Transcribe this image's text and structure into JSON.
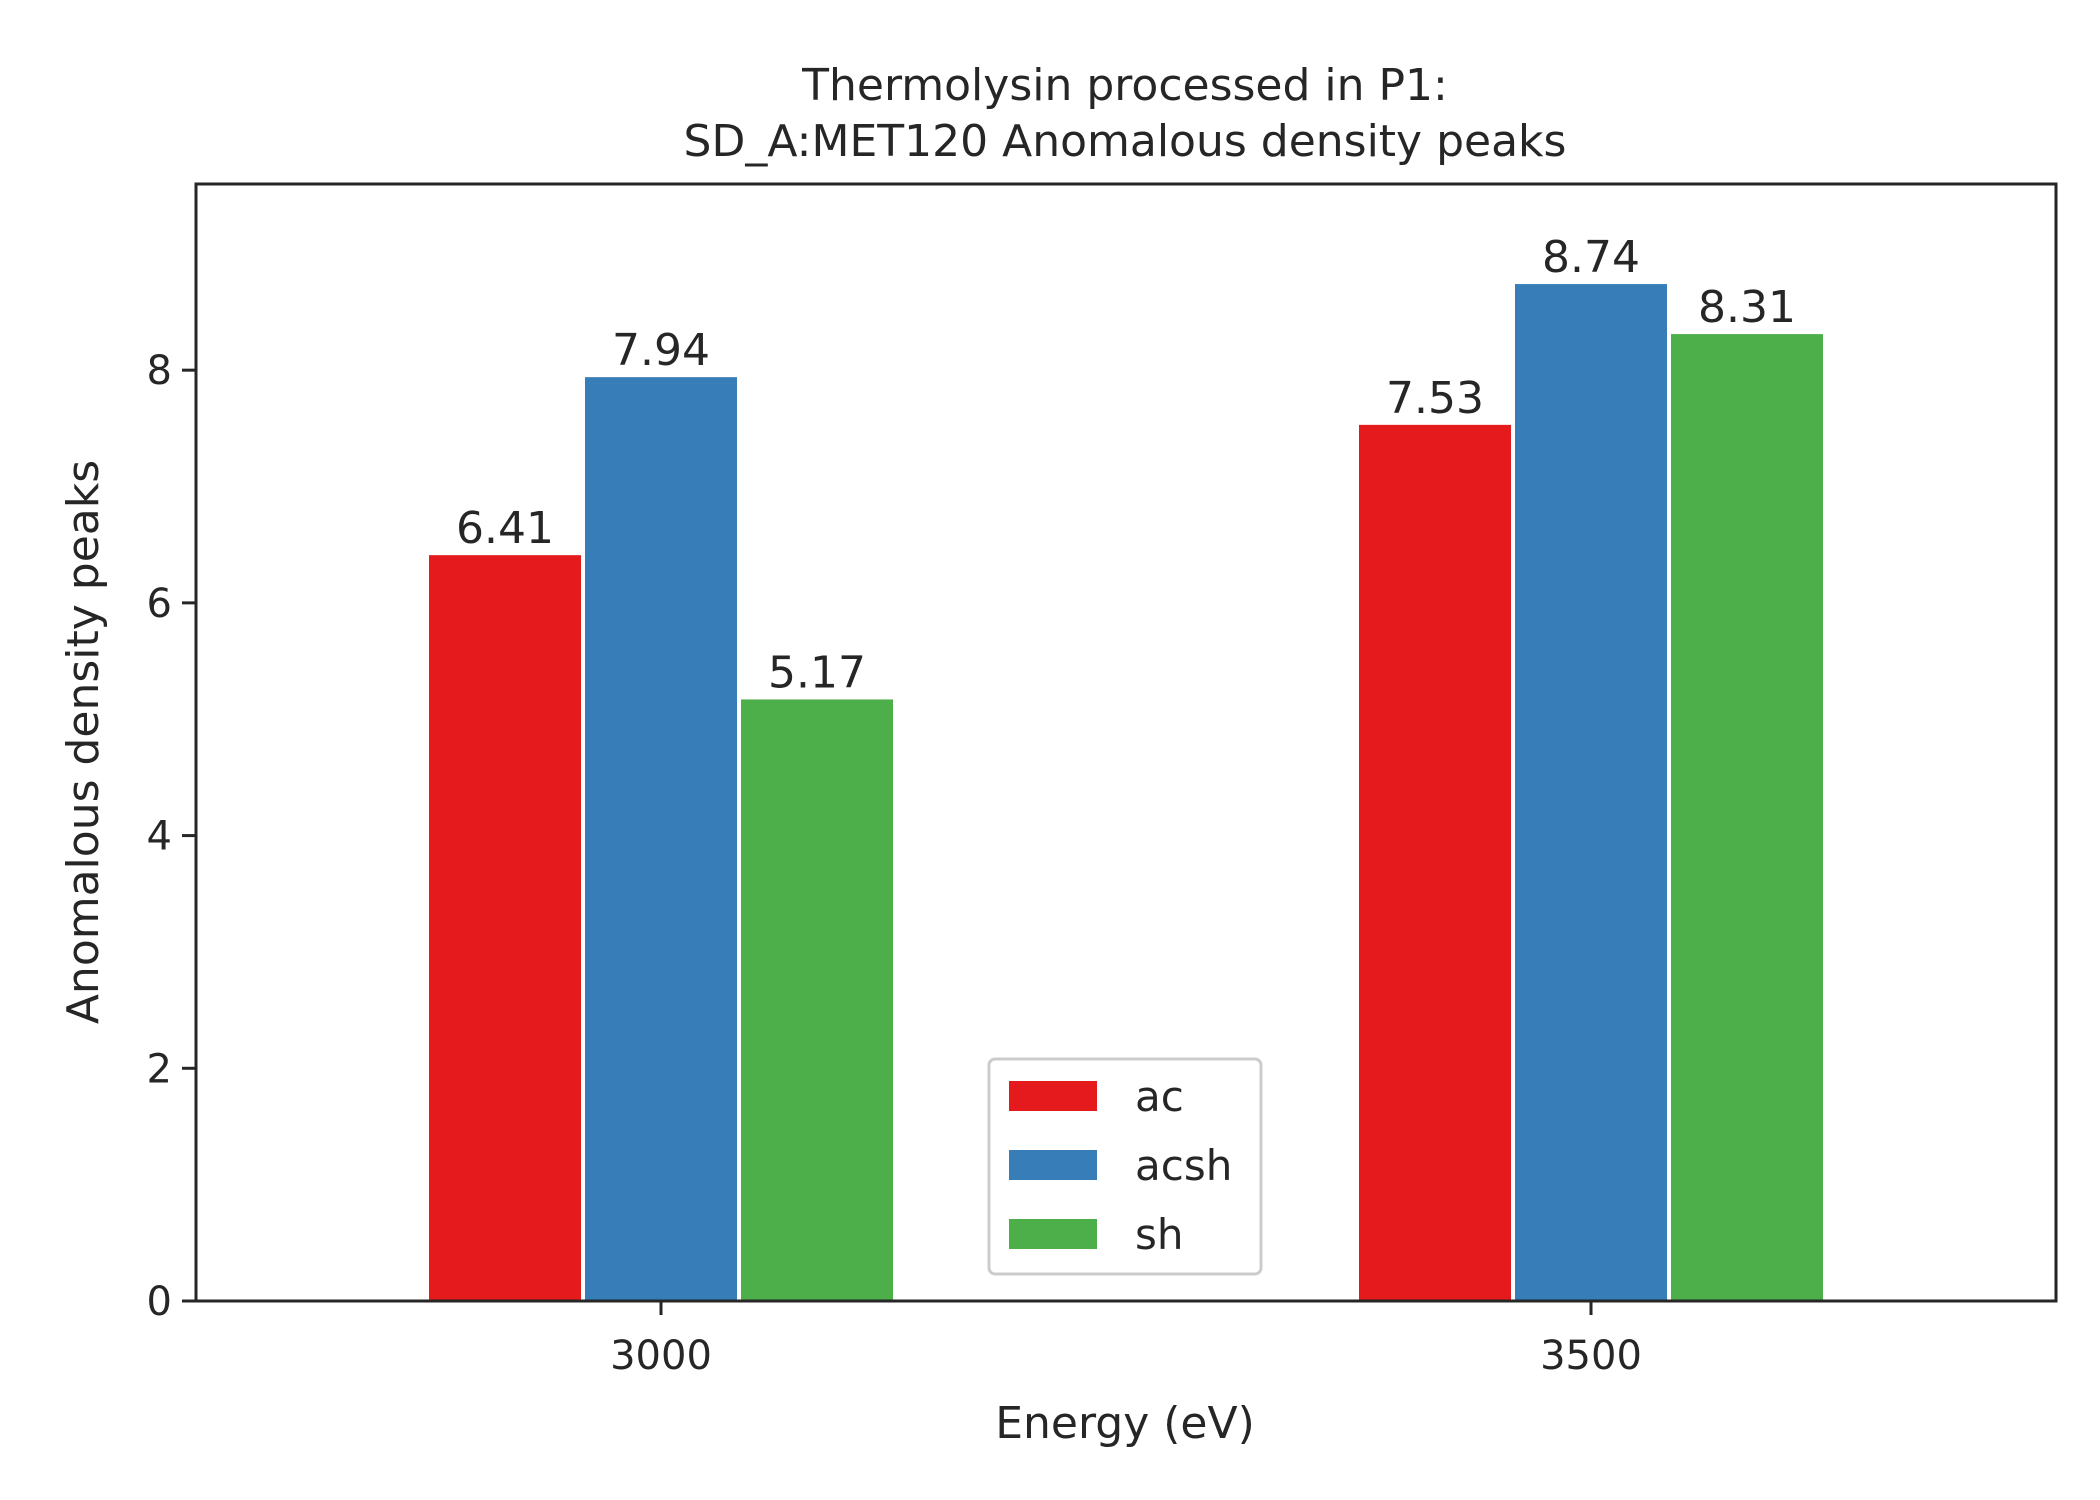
{
  "chart_data": {
    "type": "bar",
    "title_line1": "Thermolysin processed in P1:",
    "title_line2": "SD_A:MET120 Anomalous density peaks",
    "xlabel": "Energy (eV)",
    "ylabel": "Anomalous density peaks",
    "categories": [
      "3000",
      "3500"
    ],
    "series": [
      {
        "name": "ac",
        "color": "#e41a1c",
        "values": [
          6.41,
          7.53
        ]
      },
      {
        "name": "acsh",
        "color": "#377eb8",
        "values": [
          7.94,
          8.74
        ]
      },
      {
        "name": "sh",
        "color": "#4daf4a",
        "values": [
          5.17,
          8.31
        ]
      }
    ],
    "data_labels": [
      [
        "6.41",
        "7.53"
      ],
      [
        "7.94",
        "8.74"
      ],
      [
        "5.17",
        "8.31"
      ]
    ],
    "yticks": [
      0,
      2,
      4,
      6,
      8
    ],
    "ylim": [
      0,
      9.6
    ],
    "legend_position": "bottom-center",
    "grid": false
  }
}
